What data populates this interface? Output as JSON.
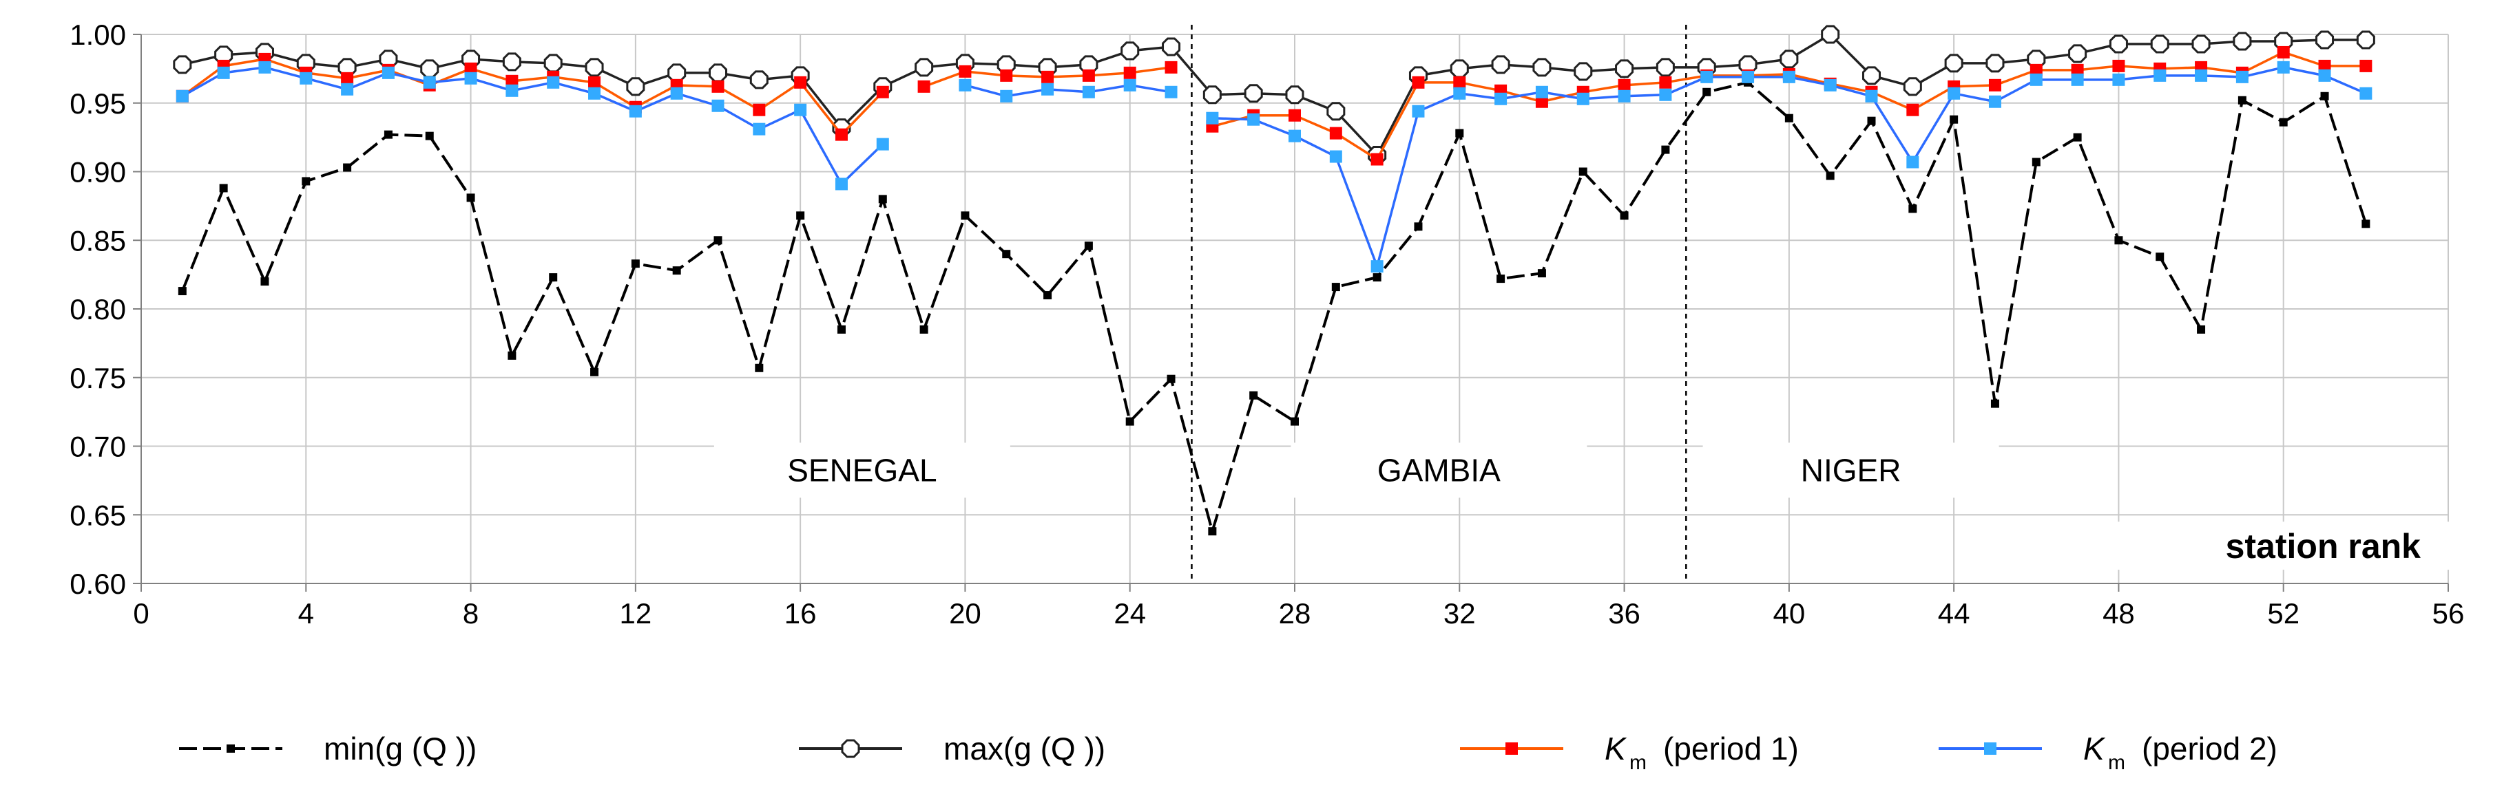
{
  "chart_data": {
    "type": "line",
    "title": "",
    "xlabel": "station rank",
    "ylabel": "",
    "xlim": [
      0,
      56
    ],
    "ylim": [
      0.6,
      1.0
    ],
    "xticks": [
      0,
      4,
      8,
      12,
      16,
      20,
      24,
      28,
      32,
      36,
      40,
      44,
      48,
      52,
      56
    ],
    "yticks": [
      0.6,
      0.65,
      0.7,
      0.75,
      0.8,
      0.85,
      0.9,
      0.95,
      1.0
    ],
    "xtick_labels": [
      "0",
      "4",
      "8",
      "12",
      "16",
      "20",
      "24",
      "28",
      "32",
      "36",
      "40",
      "44",
      "48",
      "52",
      "56"
    ],
    "ytick_labels": [
      "0.60",
      "0.65",
      "0.70",
      "0.75",
      "0.80",
      "0.85",
      "0.90",
      "0.95",
      "1.00"
    ],
    "grid": true,
    "regions": [
      {
        "label": "SENEGAL",
        "x_center": 17.5
      },
      {
        "label": "GAMBIA",
        "x_center": 31.5
      },
      {
        "label": "NIGER",
        "x_center": 41.5
      }
    ],
    "dividers": [
      25.5,
      37.5
    ],
    "legend_position": "bottom",
    "series": [
      {
        "name": "min(g(Q))",
        "legend_text": "min(g (Q ))",
        "color": "#000000",
        "marker": "filled-small",
        "dash": "long",
        "segments": [
          {
            "x": [
              1,
              2,
              3,
              4,
              5,
              6,
              7,
              8,
              9,
              10,
              11,
              12,
              13,
              14,
              15,
              16,
              17,
              18,
              19,
              20,
              21,
              22,
              23,
              24,
              25,
              26,
              27,
              28,
              29,
              30,
              31,
              32,
              33,
              34,
              35,
              36,
              37,
              38,
              39,
              40,
              41,
              42,
              43,
              44,
              45,
              46,
              47,
              48,
              49,
              50,
              51,
              52,
              53,
              54
            ],
            "y": [
              0.813,
              0.888,
              0.82,
              0.893,
              0.903,
              0.927,
              0.926,
              0.881,
              0.766,
              0.823,
              0.754,
              0.833,
              0.828,
              0.85,
              0.757,
              0.868,
              0.785,
              0.88,
              0.785,
              0.868,
              0.84,
              0.81,
              0.846,
              0.718,
              0.749,
              0.638,
              0.737,
              0.718,
              0.816,
              0.823,
              0.86,
              0.928,
              0.822,
              0.826,
              0.9,
              0.868,
              0.916,
              0.958,
              0.965,
              0.939,
              0.897,
              0.937,
              0.873,
              0.938,
              0.731,
              0.907,
              0.925,
              0.85,
              0.838,
              0.785,
              0.952,
              0.936,
              0.955,
              0.862
            ]
          }
        ]
      },
      {
        "name": "max(g(Q))",
        "legend_text": "max(g (Q ))",
        "color": "#222222",
        "marker": "open-octagon",
        "dash": "solid",
        "segments": [
          {
            "x": [
              1,
              2,
              3,
              4,
              5,
              6,
              7,
              8,
              9,
              10,
              11,
              12,
              13,
              14,
              15,
              16,
              17,
              18,
              19,
              20,
              21,
              22,
              23,
              24,
              25,
              26,
              27,
              28,
              29,
              30,
              31,
              32,
              33,
              34,
              35,
              36,
              37,
              38,
              39,
              40,
              41,
              42,
              43,
              44,
              45,
              46,
              47,
              48,
              49,
              50,
              51,
              52,
              53,
              54
            ],
            "y": [
              0.978,
              0.985,
              0.987,
              0.979,
              0.976,
              0.982,
              0.975,
              0.982,
              0.98,
              0.979,
              0.976,
              0.962,
              0.972,
              0.972,
              0.967,
              0.97,
              0.932,
              0.962,
              0.976,
              0.979,
              0.978,
              0.976,
              0.978,
              0.988,
              0.991,
              0.956,
              0.957,
              0.956,
              0.944,
              0.912,
              0.97,
              0.975,
              0.978,
              0.976,
              0.973,
              0.975,
              0.976,
              0.976,
              0.978,
              0.982,
              1.0,
              0.97,
              0.962,
              0.979,
              0.979,
              0.982,
              0.986,
              0.993,
              0.993,
              0.993,
              0.995,
              0.995,
              0.996,
              0.996
            ]
          }
        ]
      },
      {
        "name": "Km (period 1)",
        "legend_symbol": "K",
        "legend_subscript": "m",
        "legend_text": "(period 1)",
        "color": "#ff5a00",
        "marker_color": "#ff0000",
        "marker": "filled-square",
        "dash": "solid",
        "segments": [
          {
            "x": [
              1,
              2,
              3,
              4,
              5,
              6,
              7,
              8,
              9,
              10,
              11,
              12,
              13,
              14,
              15,
              16,
              17,
              18
            ],
            "y": [
              0.955,
              0.977,
              0.982,
              0.972,
              0.968,
              0.974,
              0.963,
              0.975,
              0.966,
              0.969,
              0.965,
              0.947,
              0.963,
              0.962,
              0.945,
              0.965,
              0.927,
              0.958
            ]
          },
          {
            "x": [
              19,
              20,
              21,
              22,
              23,
              24,
              25
            ],
            "y": [
              0.962,
              0.973,
              0.97,
              0.969,
              0.97,
              0.972,
              0.976
            ]
          },
          {
            "x": [
              26,
              27,
              28,
              29,
              30,
              31,
              32,
              33,
              34,
              35,
              36,
              37,
              38,
              39,
              40,
              41,
              42,
              43,
              44,
              45,
              46,
              47,
              48,
              49,
              50,
              51,
              52,
              53,
              54
            ],
            "y": [
              0.933,
              0.941,
              0.941,
              0.928,
              0.909,
              0.965,
              0.965,
              0.959,
              0.951,
              0.958,
              0.963,
              0.965,
              0.97,
              0.97,
              0.971,
              0.964,
              0.958,
              0.945,
              0.962,
              0.963,
              0.974,
              0.974,
              0.977,
              0.975,
              0.976,
              0.972,
              0.987,
              0.977,
              0.977
            ]
          }
        ]
      },
      {
        "name": "Km (period 2)",
        "legend_symbol": "K",
        "legend_subscript": "m",
        "legend_text": "(period 2)",
        "color": "#2c6bff",
        "marker_color": "#33aaff",
        "marker": "filled-square",
        "dash": "solid",
        "segments": [
          {
            "x": [
              1,
              2,
              3,
              4,
              5,
              6,
              7,
              8,
              9,
              10,
              11,
              12,
              13,
              14,
              15,
              16,
              17,
              18
            ],
            "y": [
              0.955,
              0.972,
              0.976,
              0.968,
              0.96,
              0.972,
              0.965,
              0.968,
              0.959,
              0.965,
              0.957,
              0.944,
              0.957,
              0.948,
              0.931,
              0.945,
              0.891,
              0.92
            ]
          },
          {
            "x": [
              20,
              21,
              22,
              23,
              24,
              25
            ],
            "y": [
              0.963,
              0.955,
              0.96,
              0.958,
              0.963,
              0.958
            ]
          },
          {
            "x": [
              26,
              27,
              28,
              29,
              30,
              31,
              32,
              33,
              34,
              35,
              36,
              37,
              38,
              39,
              40,
              41,
              42,
              43,
              44,
              45,
              46,
              47,
              48,
              49,
              50,
              51,
              52,
              53,
              54
            ],
            "y": [
              0.939,
              0.938,
              0.926,
              0.911,
              0.831,
              0.944,
              0.957,
              0.953,
              0.958,
              0.953,
              0.955,
              0.956,
              0.969,
              0.969,
              0.969,
              0.963,
              0.955,
              0.907,
              0.957,
              0.951,
              0.967,
              0.967,
              0.967,
              0.97,
              0.97,
              0.969,
              0.976,
              0.97,
              0.957
            ]
          }
        ]
      }
    ]
  }
}
